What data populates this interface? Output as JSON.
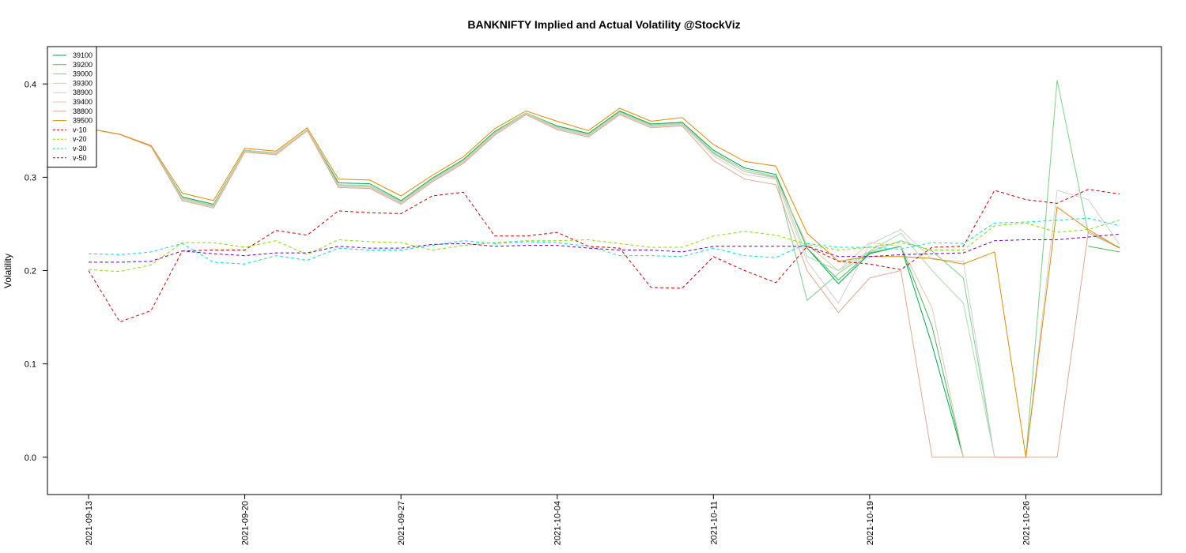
{
  "chart_data": {
    "type": "line",
    "title": "BANKNIFTY Implied and Actual Volatility @StockViz",
    "xlabel": "",
    "ylabel": "Volatility",
    "ylim": [
      -0.04,
      0.44
    ],
    "yticks": [
      "0.0",
      "0.1",
      "0.2",
      "0.3",
      "0.4"
    ],
    "xticks": [
      {
        "index": 0,
        "label": "2021-09-13"
      },
      {
        "index": 5,
        "label": "2021-09-20"
      },
      {
        "index": 10,
        "label": "2021-09-27"
      },
      {
        "index": 15,
        "label": "2021-10-04"
      },
      {
        "index": 20,
        "label": "2021-10-11"
      },
      {
        "index": 25,
        "label": "2021-10-19"
      },
      {
        "index": 30,
        "label": "2021-10-26"
      }
    ],
    "n_points": 34,
    "legend_position": "top-left",
    "grid": false,
    "series": [
      {
        "name": "39100",
        "color": "#00a84a",
        "dash": "",
        "values": [
          0.352,
          0.346,
          0.333,
          0.279,
          0.271,
          0.329,
          0.326,
          0.351,
          0.294,
          0.293,
          0.275,
          0.299,
          0.319,
          0.349,
          0.369,
          0.355,
          0.347,
          0.371,
          0.357,
          0.359,
          0.329,
          0.31,
          0.303,
          0.224,
          0.186,
          0.218,
          0.226,
          0.12,
          0.0,
          null,
          null,
          null,
          null,
          null
        ]
      },
      {
        "name": "39200",
        "color": "#46b85a",
        "dash": "",
        "values": [
          0.352,
          0.346,
          0.333,
          0.278,
          0.27,
          0.329,
          0.326,
          0.351,
          0.292,
          0.291,
          0.274,
          0.298,
          0.318,
          0.348,
          0.369,
          0.354,
          0.346,
          0.37,
          0.356,
          0.358,
          0.327,
          0.308,
          0.301,
          0.224,
          0.19,
          0.219,
          0.226,
          0.14,
          0.0,
          null,
          null,
          null,
          0.226,
          0.22
        ]
      },
      {
        "name": "39000",
        "color": "#7ccf8a",
        "dash": "",
        "values": [
          0.352,
          0.346,
          0.333,
          0.277,
          0.269,
          0.328,
          0.325,
          0.351,
          0.291,
          0.29,
          0.273,
          0.297,
          0.317,
          0.347,
          0.368,
          0.353,
          0.345,
          0.369,
          0.355,
          0.357,
          0.326,
          0.306,
          0.3,
          0.168,
          0.197,
          0.22,
          0.232,
          0.221,
          0.192,
          0.0,
          0.0,
          0.404,
          0.24,
          0.225
        ]
      },
      {
        "name": "39300",
        "color": "#a9dcb2",
        "dash": "",
        "values": [
          0.352,
          0.346,
          0.333,
          0.278,
          0.27,
          0.329,
          0.326,
          0.351,
          0.292,
          0.291,
          0.274,
          0.298,
          0.318,
          0.348,
          0.369,
          0.354,
          0.346,
          0.37,
          0.356,
          0.358,
          0.327,
          0.308,
          0.301,
          0.215,
          0.2,
          0.221,
          0.24,
          0.2,
          0.165,
          0.0,
          null,
          null,
          0.24,
          0.224
        ]
      },
      {
        "name": "38900",
        "color": "#d0d0d0",
        "dash": "",
        "values": [
          0.352,
          0.346,
          0.333,
          0.276,
          0.268,
          0.327,
          0.325,
          0.35,
          0.29,
          0.289,
          0.272,
          0.296,
          0.316,
          0.346,
          0.368,
          0.352,
          0.344,
          0.368,
          0.354,
          0.356,
          0.323,
          0.303,
          0.298,
          0.21,
          0.165,
          0.228,
          0.244,
          0.212,
          0.21,
          0.0,
          0.0,
          0.286,
          0.276,
          0.228
        ]
      },
      {
        "name": "39400",
        "color": "#e3c7b0",
        "dash": "",
        "values": [
          0.352,
          0.346,
          0.333,
          0.277,
          0.27,
          0.328,
          0.325,
          0.351,
          0.291,
          0.29,
          0.273,
          0.297,
          0.317,
          0.347,
          0.368,
          0.353,
          0.345,
          0.369,
          0.355,
          0.357,
          0.325,
          0.306,
          0.299,
          0.228,
          0.2,
          0.23,
          0.226,
          0.16,
          0.0,
          null,
          null,
          null,
          0.242,
          0.224
        ]
      },
      {
        "name": "38800",
        "color": "#e0a890",
        "dash": "",
        "values": [
          0.352,
          0.346,
          0.333,
          0.275,
          0.267,
          0.327,
          0.324,
          0.35,
          0.289,
          0.288,
          0.271,
          0.295,
          0.315,
          0.345,
          0.367,
          0.351,
          0.343,
          0.367,
          0.353,
          0.355,
          0.318,
          0.298,
          0.292,
          0.2,
          0.155,
          0.192,
          0.2,
          0.0,
          0.0,
          0.0,
          0.0,
          0.0,
          0.242,
          0.224
        ]
      },
      {
        "name": "39500",
        "color": "#e08a00",
        "dash": "",
        "values": [
          0.352,
          0.346,
          0.334,
          0.283,
          0.275,
          0.331,
          0.328,
          0.353,
          0.298,
          0.297,
          0.28,
          0.302,
          0.322,
          0.352,
          0.371,
          0.36,
          0.35,
          0.374,
          0.36,
          0.364,
          0.335,
          0.317,
          0.312,
          0.24,
          0.21,
          0.215,
          0.215,
          0.213,
          0.207,
          0.22,
          0.0,
          0.268,
          0.244,
          0.224
        ]
      },
      {
        "name": "v-10",
        "color": "#cc0000",
        "dash": "4,3",
        "values": [
          0.2,
          0.145,
          0.157,
          0.221,
          0.222,
          0.222,
          0.243,
          0.238,
          0.264,
          0.262,
          0.261,
          0.28,
          0.284,
          0.237,
          0.237,
          0.241,
          0.226,
          0.224,
          0.182,
          0.181,
          0.215,
          0.2,
          0.187,
          0.226,
          0.21,
          0.207,
          0.201,
          0.225,
          0.226,
          0.286,
          0.276,
          0.272,
          0.287,
          0.282
        ]
      },
      {
        "name": "v-20",
        "color": "#88dd00",
        "dash": "4,3",
        "values": [
          0.201,
          0.199,
          0.206,
          0.23,
          0.23,
          0.225,
          0.232,
          0.217,
          0.233,
          0.231,
          0.23,
          0.222,
          0.227,
          0.23,
          0.232,
          0.232,
          0.233,
          0.229,
          0.225,
          0.225,
          0.237,
          0.242,
          0.238,
          0.228,
          0.222,
          0.225,
          0.23,
          0.222,
          0.222,
          0.248,
          0.251,
          0.241,
          0.244,
          0.254
        ]
      },
      {
        "name": "v-30",
        "color": "#00e0ee",
        "dash": "4,3",
        "values": [
          0.218,
          0.217,
          0.22,
          0.229,
          0.209,
          0.207,
          0.216,
          0.211,
          0.224,
          0.222,
          0.222,
          0.227,
          0.232,
          0.229,
          0.231,
          0.23,
          0.226,
          0.216,
          0.216,
          0.215,
          0.224,
          0.216,
          0.214,
          0.229,
          0.225,
          0.225,
          0.223,
          0.23,
          0.229,
          0.251,
          0.252,
          0.254,
          0.256,
          0.248
        ]
      },
      {
        "name": "v-50",
        "color": "#6a00cc",
        "dash": "4,3",
        "values": [
          0.209,
          0.209,
          0.21,
          0.221,
          0.218,
          0.216,
          0.219,
          0.219,
          0.226,
          0.224,
          0.224,
          0.228,
          0.229,
          0.226,
          0.227,
          0.227,
          0.224,
          0.222,
          0.222,
          0.22,
          0.226,
          0.226,
          0.226,
          0.226,
          0.215,
          0.215,
          0.217,
          0.218,
          0.219,
          0.232,
          0.233,
          0.233,
          0.236,
          0.239
        ]
      }
    ]
  }
}
